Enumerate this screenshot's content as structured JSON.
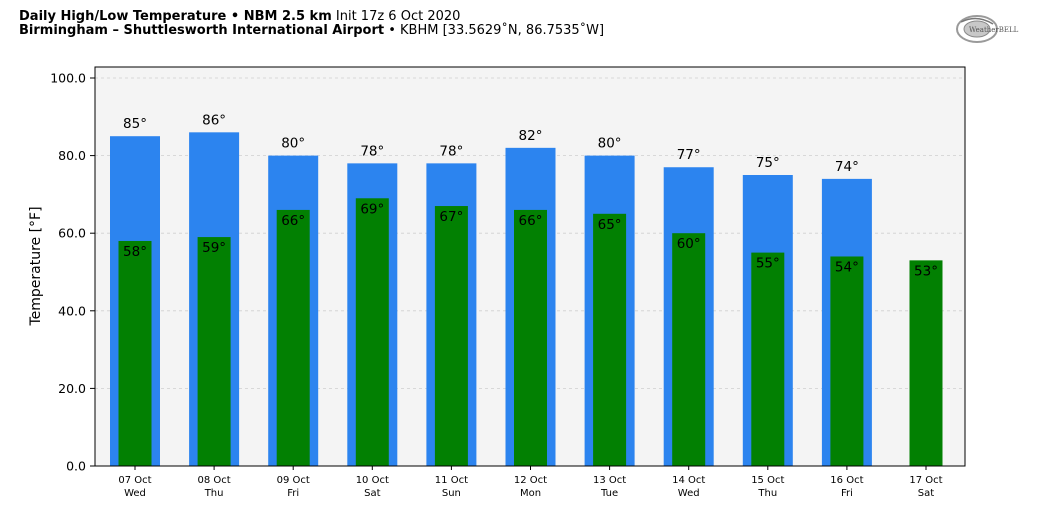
{
  "header": {
    "title_bold": "Daily High/Low Temperature • NBM 2.5 km",
    "init_text": "Init 17z 6 Oct 2020",
    "location_bold": "Birmingham – Shuttlesworth International Airport",
    "station_text": "• KBHM [33.5629˚N, 86.7535˚W]"
  },
  "logo": {
    "text": "WeatherBELL",
    "icon": "weatherbell-logo-icon"
  },
  "colors": {
    "high": "#2c84ef",
    "low": "#028002",
    "plot_bg": "#f4f4f4",
    "grid": "#cfcfcf"
  },
  "chart_data": {
    "type": "bar",
    "ylabel": "Temperature [°F]",
    "ylim": [
      0,
      100
    ],
    "yticks": [
      "0.0",
      "20.0",
      "40.0",
      "60.0",
      "80.0",
      "100.0"
    ],
    "ytick_values": [
      0,
      20,
      40,
      60,
      80,
      100
    ],
    "grid": true,
    "unit_suffix": "°",
    "categories": [
      {
        "date": "07 Oct",
        "day": "Wed"
      },
      {
        "date": "08 Oct",
        "day": "Thu"
      },
      {
        "date": "09 Oct",
        "day": "Fri"
      },
      {
        "date": "10 Oct",
        "day": "Sat"
      },
      {
        "date": "11 Oct",
        "day": "Sun"
      },
      {
        "date": "12 Oct",
        "day": "Mon"
      },
      {
        "date": "13 Oct",
        "day": "Tue"
      },
      {
        "date": "14 Oct",
        "day": "Wed"
      },
      {
        "date": "15 Oct",
        "day": "Thu"
      },
      {
        "date": "16 Oct",
        "day": "Fri"
      },
      {
        "date": "17 Oct",
        "day": "Sat"
      }
    ],
    "series": [
      {
        "key": "high",
        "values": [
          85,
          86,
          80,
          78,
          78,
          82,
          80,
          77,
          75,
          74,
          null
        ]
      },
      {
        "key": "low",
        "values": [
          58,
          59,
          66,
          69,
          67,
          66,
          65,
          60,
          55,
          54,
          53
        ]
      }
    ]
  }
}
